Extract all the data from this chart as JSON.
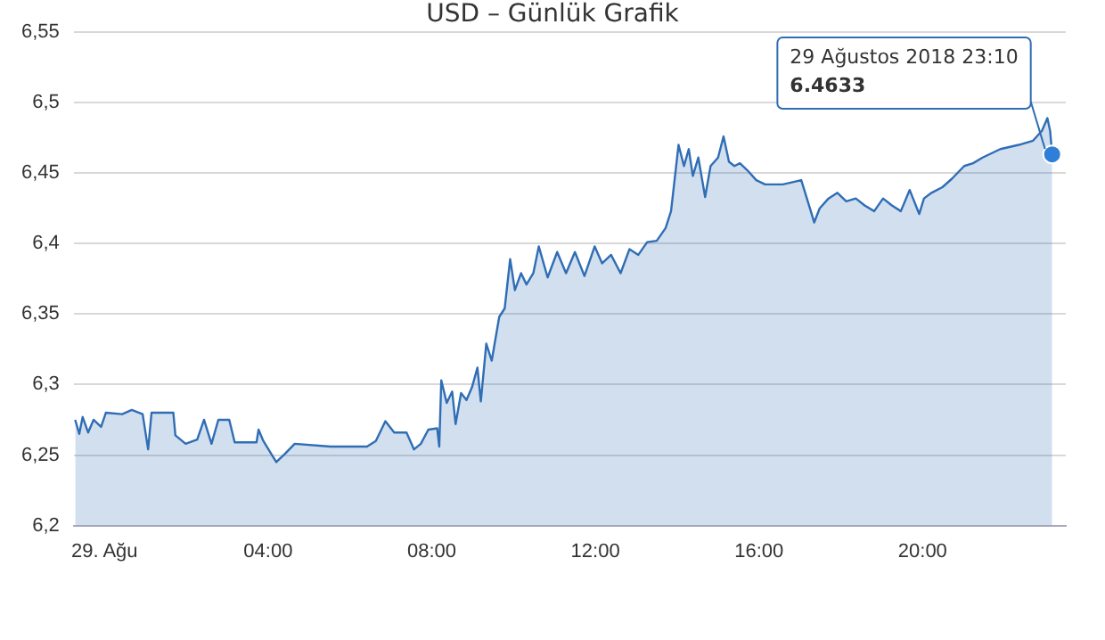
{
  "chart_data": {
    "type": "area",
    "title": "USD – Günlük Grafik",
    "x": [
      "2018-08-28T23:17",
      "2018-08-28T23:23",
      "2018-08-28T23:28",
      "2018-08-28T23:36",
      "2018-08-28T23:44",
      "2018-08-28T23:55",
      "2018-08-29T00:02",
      "2018-08-29T00:26",
      "2018-08-29T00:40",
      "2018-08-29T00:56",
      "2018-08-29T01:04",
      "2018-08-29T01:09",
      "2018-08-29T01:41",
      "2018-08-29T01:44",
      "2018-08-29T01:59",
      "2018-08-29T02:16",
      "2018-08-29T02:26",
      "2018-08-29T02:37",
      "2018-08-29T02:47",
      "2018-08-29T03:03",
      "2018-08-29T03:11",
      "2018-08-29T03:43",
      "2018-08-29T03:46",
      "2018-08-29T03:53",
      "2018-08-29T04:12",
      "2018-08-29T04:25",
      "2018-08-29T04:39",
      "2018-08-29T05:32",
      "2018-08-29T06:25",
      "2018-08-29T06:38",
      "2018-08-29T06:52",
      "2018-08-29T07:05",
      "2018-08-29T07:23",
      "2018-08-29T07:34",
      "2018-08-29T07:44",
      "2018-08-29T07:55",
      "2018-08-29T08:08",
      "2018-08-29T08:11",
      "2018-08-29T08:14",
      "2018-08-29T08:22",
      "2018-08-29T08:30",
      "2018-08-29T08:35",
      "2018-08-29T08:43",
      "2018-08-29T08:51",
      "2018-08-29T08:59",
      "2018-08-29T09:07",
      "2018-08-29T09:12",
      "2018-08-29T09:20",
      "2018-08-29T09:28",
      "2018-08-29T09:39",
      "2018-08-29T09:47",
      "2018-08-29T09:55",
      "2018-08-29T10:02",
      "2018-08-29T10:11",
      "2018-08-29T10:19",
      "2018-08-29T10:29",
      "2018-08-29T10:37",
      "2018-08-29T10:50",
      "2018-08-29T11:04",
      "2018-08-29T11:17",
      "2018-08-29T11:30",
      "2018-08-29T11:44",
      "2018-08-29T11:59",
      "2018-08-29T12:10",
      "2018-08-29T12:23",
      "2018-08-29T12:37",
      "2018-08-29T12:50",
      "2018-08-29T13:03",
      "2018-08-29T13:16",
      "2018-08-29T13:30",
      "2018-08-29T13:43",
      "2018-08-29T13:51",
      "2018-08-29T14:02",
      "2018-08-29T14:10",
      "2018-08-29T14:17",
      "2018-08-29T14:23",
      "2018-08-29T14:31",
      "2018-08-29T14:41",
      "2018-08-29T14:49",
      "2018-08-29T15:00",
      "2018-08-29T15:08",
      "2018-08-29T15:16",
      "2018-08-29T15:24",
      "2018-08-29T15:32",
      "2018-08-29T15:43",
      "2018-08-29T15:56",
      "2018-08-29T16:09",
      "2018-08-29T16:35",
      "2018-08-29T17:02",
      "2018-08-29T17:16",
      "2018-08-29T17:21",
      "2018-08-29T17:29",
      "2018-08-29T17:42",
      "2018-08-29T17:55",
      "2018-08-29T18:08",
      "2018-08-29T18:22",
      "2018-08-29T18:35",
      "2018-08-29T18:49",
      "2018-08-29T19:02",
      "2018-08-29T19:15",
      "2018-08-29T19:28",
      "2018-08-29T19:41",
      "2018-08-29T19:55",
      "2018-08-29T20:02",
      "2018-08-29T20:13",
      "2018-08-29T20:29",
      "2018-08-29T20:43",
      "2018-08-29T21:01",
      "2018-08-29T21:14",
      "2018-08-29T21:28",
      "2018-08-29T21:54",
      "2018-08-29T22:21",
      "2018-08-29T22:42",
      "2018-08-29T22:55",
      "2018-08-29T23:03",
      "2018-08-29T23:07",
      "2018-08-29T23:10"
    ],
    "series": [
      {
        "color": "#2f6db5",
        "values": [
          6.275,
          6.265,
          6.277,
          6.266,
          6.275,
          6.27,
          6.28,
          6.279,
          6.282,
          6.279,
          6.254,
          6.28,
          6.28,
          6.264,
          6.258,
          6.261,
          6.275,
          6.258,
          6.275,
          6.275,
          6.259,
          6.259,
          6.268,
          6.26,
          6.245,
          6.251,
          6.258,
          6.256,
          6.256,
          6.26,
          6.274,
          6.266,
          6.266,
          6.254,
          6.258,
          6.268,
          6.269,
          6.256,
          6.303,
          6.287,
          6.295,
          6.272,
          6.294,
          6.289,
          6.298,
          6.312,
          6.288,
          6.329,
          6.317,
          6.348,
          6.354,
          6.389,
          6.367,
          6.379,
          6.371,
          6.379,
          6.398,
          6.376,
          6.394,
          6.379,
          6.394,
          6.377,
          6.398,
          6.386,
          6.392,
          6.379,
          6.396,
          6.392,
          6.401,
          6.402,
          6.411,
          6.423,
          6.47,
          6.455,
          6.467,
          6.448,
          6.461,
          6.433,
          6.455,
          6.461,
          6.476,
          6.458,
          6.455,
          6.457,
          6.452,
          6.445,
          6.442,
          6.442,
          6.445,
          6.423,
          6.415,
          6.425,
          6.432,
          6.436,
          6.43,
          6.432,
          6.427,
          6.423,
          6.432,
          6.427,
          6.423,
          6.438,
          6.421,
          6.432,
          6.436,
          6.44,
          6.446,
          6.455,
          6.457,
          6.461,
          6.467,
          6.47,
          6.473,
          6.48,
          6.489,
          6.48,
          6.4633
        ]
      }
    ],
    "xlim": [
      "2018-08-28T23:15",
      "2018-08-29T23:30"
    ],
    "xticks": [
      {
        "value": "2018-08-29T00:00",
        "label": "29. Ağu"
      },
      {
        "value": "2018-08-29T04:00",
        "label": "04:00"
      },
      {
        "value": "2018-08-29T08:00",
        "label": "08:00"
      },
      {
        "value": "2018-08-29T12:00",
        "label": "12:00"
      },
      {
        "value": "2018-08-29T16:00",
        "label": "16:00"
      },
      {
        "value": "2018-08-29T20:00",
        "label": "20:00"
      }
    ],
    "ylim": [
      6.2,
      6.55
    ],
    "yticks": [
      {
        "value": 6.2,
        "label": "6,2"
      },
      {
        "value": 6.25,
        "label": "6,25"
      },
      {
        "value": 6.3,
        "label": "6,3"
      },
      {
        "value": 6.35,
        "label": "6,35"
      },
      {
        "value": 6.4,
        "label": "6,4"
      },
      {
        "value": 6.45,
        "label": "6,45"
      },
      {
        "value": 6.5,
        "label": "6,5"
      },
      {
        "value": 6.55,
        "label": "6,55"
      }
    ],
    "annotations": [
      {
        "text": "29 Ağustos 2018 23:10\n6.4633",
        "x": "2018-08-29T23:10",
        "y": 6.4633
      }
    ],
    "grid": "y",
    "legend": false,
    "marker": "none",
    "line_style": "solid"
  }
}
